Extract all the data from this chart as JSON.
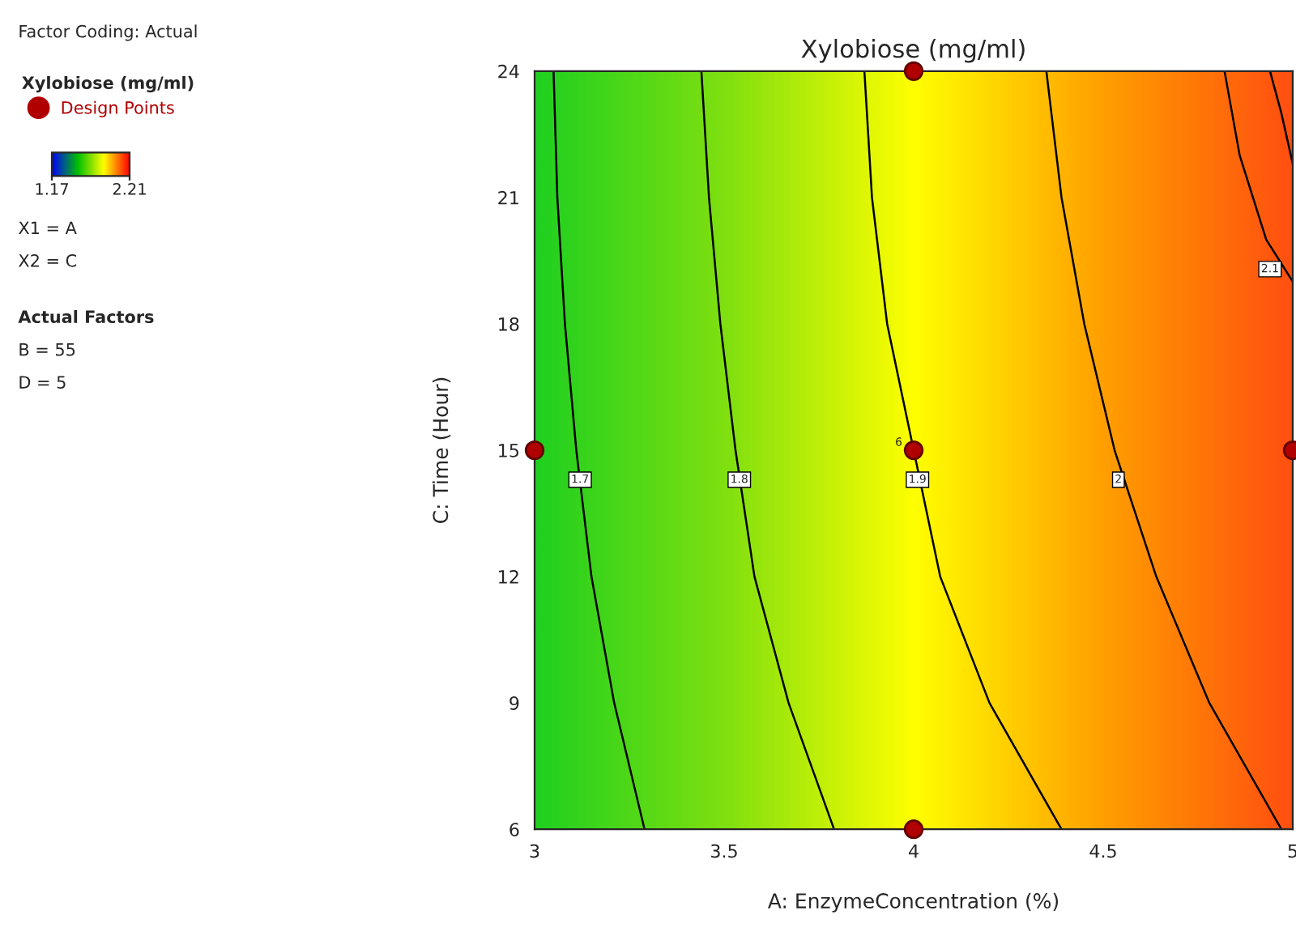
{
  "chart_data": {
    "type": "line",
    "title": "Xylobiose (mg/ml)",
    "xlabel": "A: EnzymeConcentration (%)",
    "ylabel": "C: Time (Hour)",
    "legend_title": "Xylobiose (mg/ml)",
    "legend": "top left",
    "clim": [
      1.17,
      2.21
    ],
    "cticks": [
      1.17,
      2.21
    ],
    "xlim": [
      3,
      5
    ],
    "ylim": [
      6,
      24
    ],
    "xticks": [
      3,
      3.5,
      4,
      4.5,
      5
    ],
    "yticks": [
      6,
      9,
      12,
      15,
      18,
      21,
      24
    ],
    "grid": false,
    "series": [
      {
        "name": "1.7",
        "color": "#000000",
        "x": [
          3.05,
          3.06,
          3.08,
          3.11,
          3.15,
          3.21,
          3.29
        ],
        "values": [
          24,
          21,
          18,
          15,
          12,
          9,
          6
        ]
      },
      {
        "name": "1.8",
        "color": "#000000",
        "x": [
          3.44,
          3.46,
          3.49,
          3.53,
          3.58,
          3.67,
          3.79
        ],
        "values": [
          24,
          21,
          18,
          15,
          12,
          9,
          6
        ]
      },
      {
        "name": "1.9",
        "color": "#000000",
        "x": [
          3.87,
          3.89,
          3.93,
          4.0,
          4.07,
          4.2,
          4.39
        ],
        "values": [
          24,
          21,
          18,
          15,
          12,
          9,
          6
        ]
      },
      {
        "name": "2",
        "color": "#000000",
        "x": [
          4.35,
          4.39,
          4.45,
          4.53,
          4.64,
          4.78,
          4.97
        ],
        "values": [
          24,
          21,
          18,
          15,
          12,
          9,
          6
        ]
      },
      {
        "name": "2.1",
        "color": "#000000",
        "x": [
          4.82,
          4.86,
          4.93,
          5.0
        ],
        "values": [
          24,
          22,
          20,
          19
        ]
      },
      {
        "color": "#000000",
        "x": [
          4.94,
          4.97,
          5.0
        ],
        "values": [
          24,
          23,
          21.8
        ]
      },
      {
        "type": "scatter",
        "name": "Design Points",
        "color": "#b00000",
        "marker": "circle",
        "x": [
          3,
          4,
          4,
          4,
          5
        ],
        "values": [
          15,
          24,
          15,
          6,
          15
        ]
      }
    ],
    "annotations": [
      "Factor Coding: Actual",
      "X1 = A",
      "X2 = C",
      "Actual Factors",
      "B = 55",
      "D = 5",
      {
        "text": "6",
        "x": 4,
        "y": 15
      }
    ]
  }
}
